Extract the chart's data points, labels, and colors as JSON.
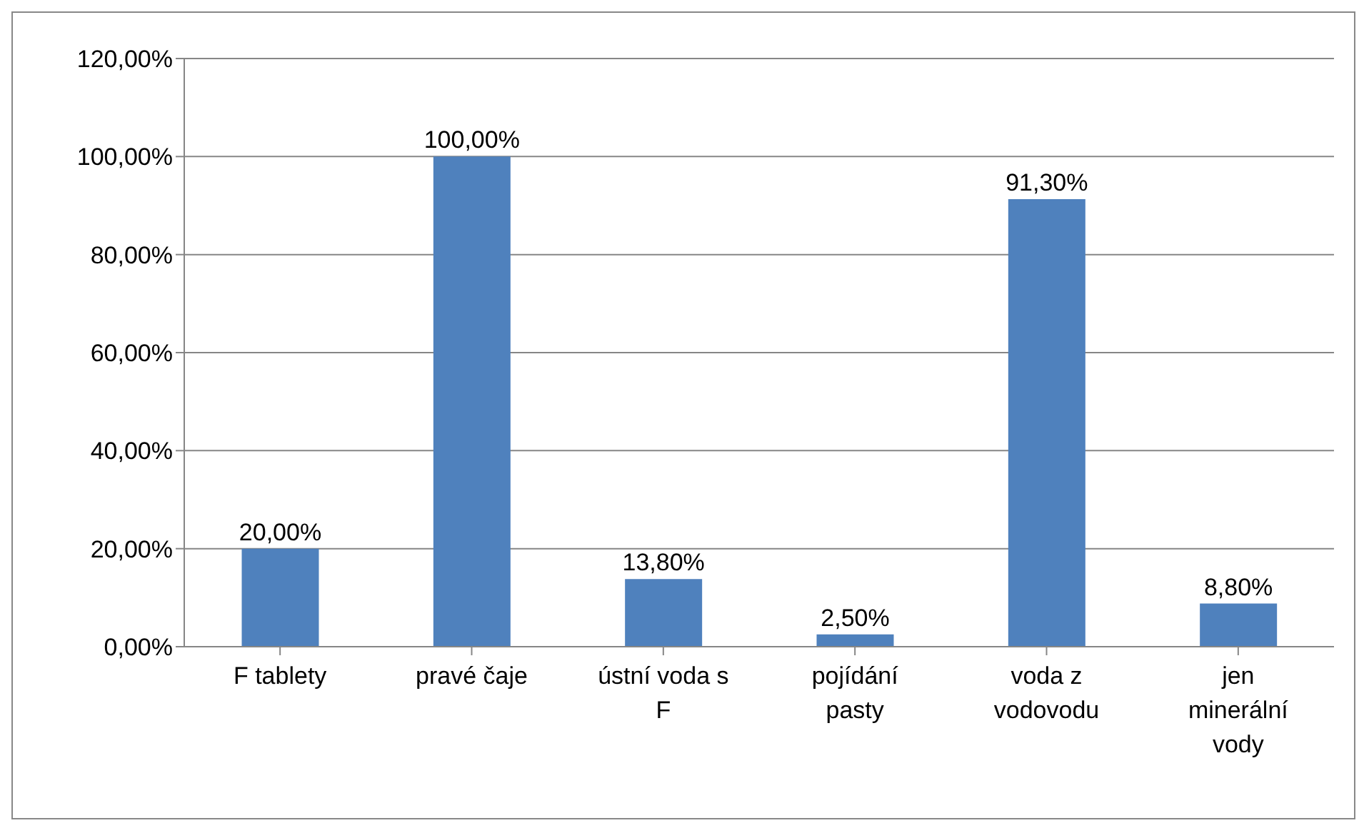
{
  "chart_data": {
    "type": "bar",
    "categories": [
      "F tablety",
      "pravé čaje",
      "ústní voda s F",
      "pojídání pasty",
      "voda z vodovodu",
      "jen minerální vody"
    ],
    "values": [
      20,
      100,
      13.8,
      2.5,
      91.3,
      8.8
    ],
    "value_labels": [
      "20,00%",
      "100,00%",
      "13,80%",
      "2,50%",
      "91,30%",
      "8,80%"
    ],
    "color": "#4f81bd",
    "ylim": [
      0,
      120
    ],
    "yticks": [
      {
        "value": 0,
        "label": "0,00%"
      },
      {
        "value": 20,
        "label": "20,00%"
      },
      {
        "value": 40,
        "label": "40,00%"
      },
      {
        "value": 60,
        "label": "60,00%"
      },
      {
        "value": 80,
        "label": "80,00%"
      },
      {
        "value": 100,
        "label": "100,00%"
      },
      {
        "value": 120,
        "label": "120,00%"
      }
    ],
    "grid": "y",
    "legend": false
  }
}
